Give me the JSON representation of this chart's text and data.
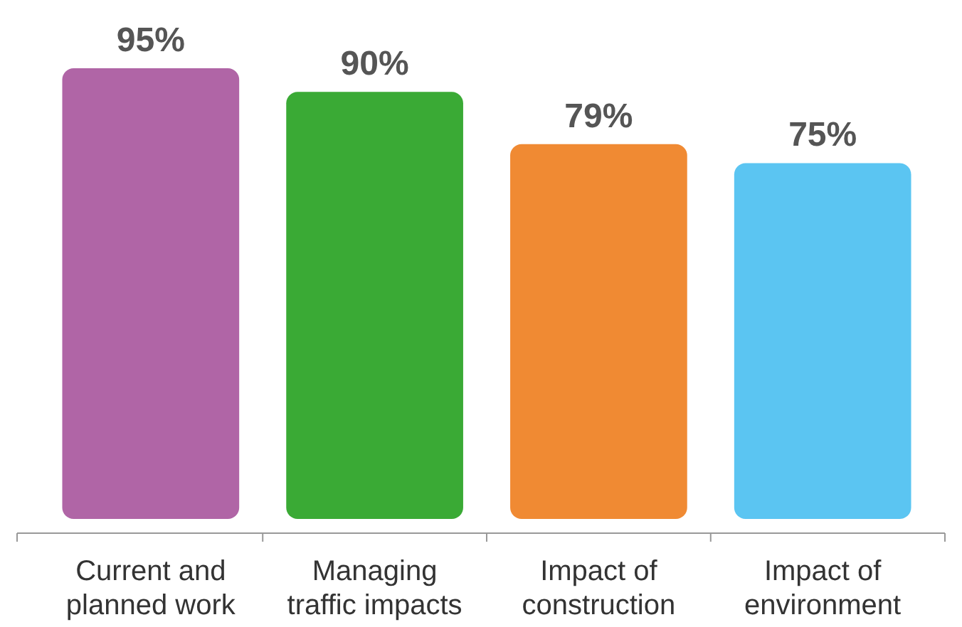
{
  "chart_data": {
    "type": "bar",
    "categories": [
      "Current and planned work",
      "Managing traffic impacts",
      "Impact of construction",
      "Impact of environment"
    ],
    "values": [
      95,
      90,
      79,
      75
    ],
    "colors": [
      "#b065a6",
      "#3aaa35",
      "#f08a33",
      "#5bc5f2"
    ],
    "value_labels": [
      "95%",
      "90%",
      "79%",
      "75%"
    ]
  }
}
